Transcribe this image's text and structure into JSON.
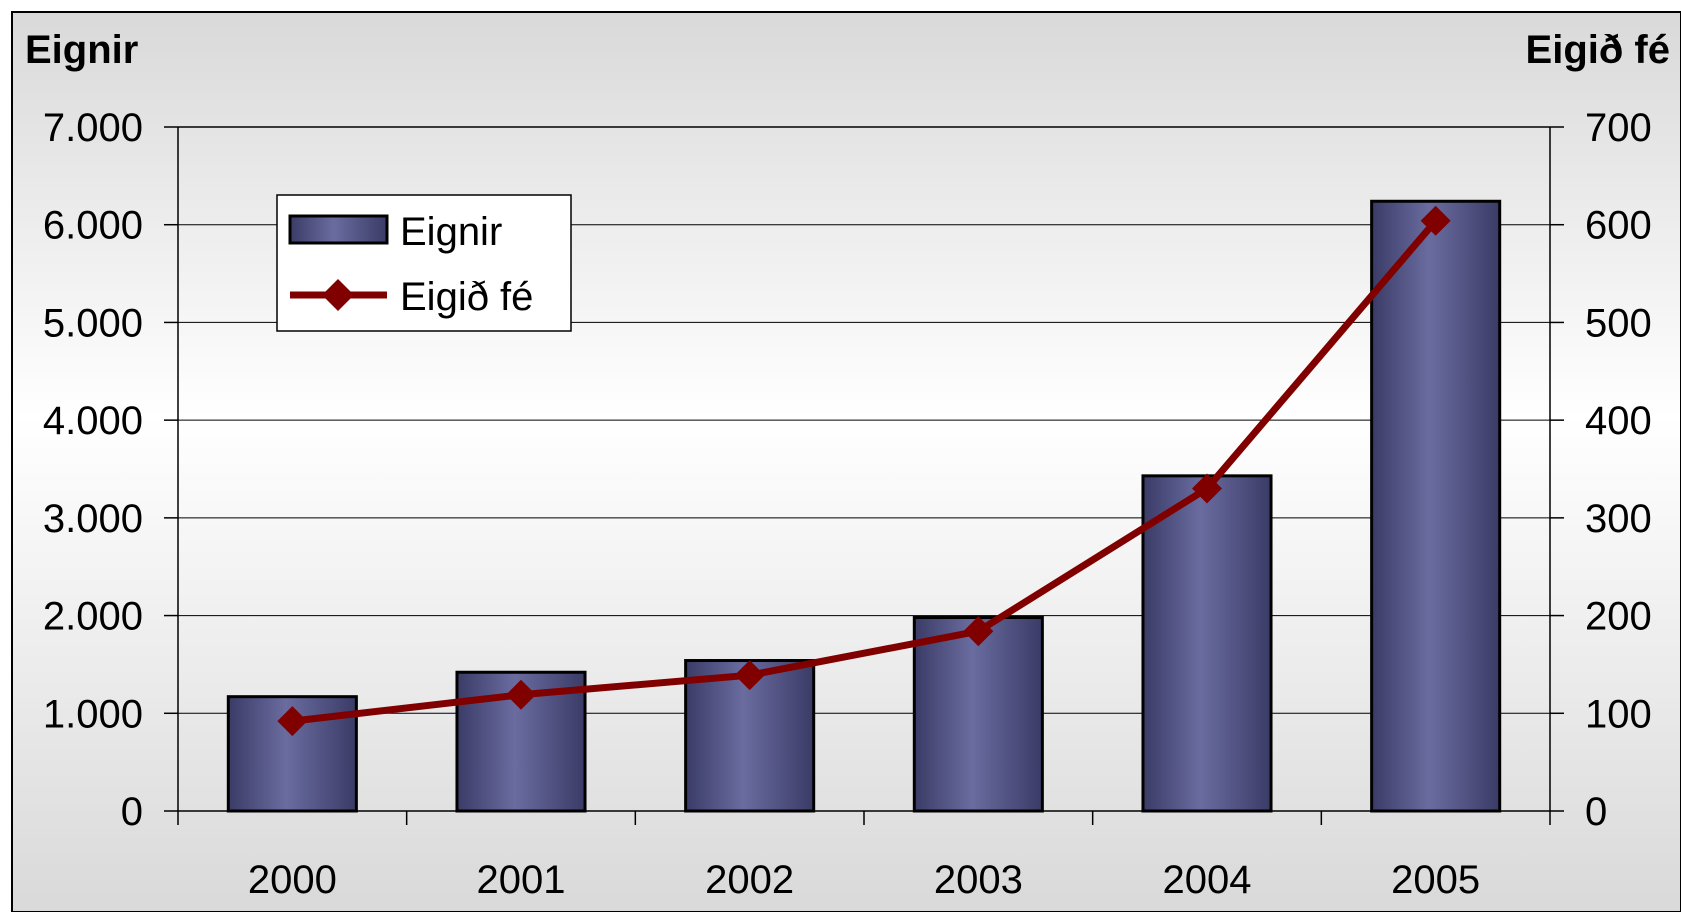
{
  "chart_data": {
    "type": "bar",
    "categories": [
      "2000",
      "2001",
      "2002",
      "2003",
      "2004",
      "2005"
    ],
    "left_axis": {
      "title": "Eignir",
      "ylim": [
        0,
        7000
      ],
      "ticks": [
        0,
        1000,
        2000,
        3000,
        4000,
        5000,
        6000,
        7000
      ],
      "tick_labels": [
        "0",
        "1.000",
        "2.000",
        "3.000",
        "4.000",
        "5.000",
        "6.000",
        "7.000"
      ]
    },
    "right_axis": {
      "title": "Eigið fé",
      "ylim": [
        0,
        700
      ],
      "ticks": [
        0,
        100,
        200,
        300,
        400,
        500,
        600,
        700
      ],
      "tick_labels": [
        "0",
        "100",
        "200",
        "300",
        "400",
        "500",
        "600",
        "700"
      ]
    },
    "series": [
      {
        "name": "Eignir",
        "type": "bar",
        "axis": "left",
        "values": [
          1170,
          1420,
          1540,
          1980,
          3430,
          6240
        ]
      },
      {
        "name": "Eigið fé",
        "type": "line",
        "axis": "right",
        "values": [
          92,
          119,
          139,
          184,
          330,
          604
        ]
      }
    ],
    "grid": true,
    "legend": "top-left",
    "colors": {
      "bar": "#5c5e92",
      "bar_dark": "#3a3b66",
      "line": "#800000",
      "background_top": "#d9d9d9",
      "background_mid": "#ffffff"
    }
  }
}
